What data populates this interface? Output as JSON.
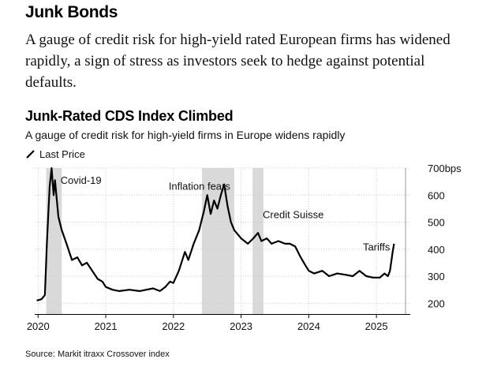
{
  "headline": "Junk Bonds",
  "lede": "A gauge of credit risk for high-yield rated European firms has widened rapidly, a sign of stress as investors seek to hedge against potential defaults.",
  "chart_data": {
    "type": "line",
    "title": "Junk-Rated CDS Index Climbed",
    "subtitle": "A gauge of credit risk for high-yield firms in Europe widens rapidly",
    "legend": [
      "Last Price"
    ],
    "legend_position": "top-left",
    "source": "Source: Markit itraxx Crossover index",
    "y_ticks": [
      {
        "value": 200,
        "label": "200"
      },
      {
        "value": 300,
        "label": "300"
      },
      {
        "value": 400,
        "label": "400"
      },
      {
        "value": 500,
        "label": "500"
      },
      {
        "value": 600,
        "label": "600"
      },
      {
        "value": 700,
        "label": "700bps"
      }
    ],
    "ylim": [
      160,
      700
    ],
    "xlim": [
      2019.95,
      2025.5
    ],
    "x_ticks": [
      {
        "value": 2020,
        "label": "2020"
      },
      {
        "value": 2021,
        "label": "2021"
      },
      {
        "value": 2022,
        "label": "2022"
      },
      {
        "value": 2023,
        "label": "2023"
      },
      {
        "value": 2024,
        "label": "2024"
      },
      {
        "value": 2025,
        "label": "2025"
      }
    ],
    "grid": true,
    "shaded_periods": [
      {
        "start": 2020.12,
        "end": 2020.35
      },
      {
        "start": 2022.42,
        "end": 2022.9
      },
      {
        "start": 2023.17,
        "end": 2023.33
      }
    ],
    "annotations": [
      {
        "text": "Covid-19",
        "x": 2020.33,
        "y": 642
      },
      {
        "text": "Inflation fears",
        "x": 2021.93,
        "y": 620
      },
      {
        "text": "Credit Suisse",
        "x": 2023.32,
        "y": 515
      },
      {
        "text": "Tariffs",
        "x": 2024.8,
        "y": 395
      }
    ],
    "series": [
      {
        "name": "Last Price",
        "color": "#000000",
        "points": [
          [
            2019.98,
            210
          ],
          [
            2020.05,
            215
          ],
          [
            2020.1,
            230
          ],
          [
            2020.13,
            420
          ],
          [
            2020.17,
            630
          ],
          [
            2020.2,
            700
          ],
          [
            2020.23,
            600
          ],
          [
            2020.25,
            655
          ],
          [
            2020.3,
            520
          ],
          [
            2020.35,
            470
          ],
          [
            2020.42,
            420
          ],
          [
            2020.5,
            360
          ],
          [
            2020.58,
            370
          ],
          [
            2020.65,
            340
          ],
          [
            2020.72,
            350
          ],
          [
            2020.8,
            320
          ],
          [
            2020.88,
            290
          ],
          [
            2020.95,
            280
          ],
          [
            2021.0,
            260
          ],
          [
            2021.1,
            250
          ],
          [
            2021.2,
            245
          ],
          [
            2021.35,
            250
          ],
          [
            2021.5,
            245
          ],
          [
            2021.6,
            250
          ],
          [
            2021.7,
            255
          ],
          [
            2021.8,
            245
          ],
          [
            2021.88,
            260
          ],
          [
            2021.95,
            280
          ],
          [
            2022.0,
            275
          ],
          [
            2022.08,
            320
          ],
          [
            2022.17,
            390
          ],
          [
            2022.22,
            360
          ],
          [
            2022.3,
            420
          ],
          [
            2022.38,
            470
          ],
          [
            2022.45,
            540
          ],
          [
            2022.5,
            600
          ],
          [
            2022.55,
            530
          ],
          [
            2022.6,
            580
          ],
          [
            2022.65,
            550
          ],
          [
            2022.7,
            600
          ],
          [
            2022.75,
            640
          ],
          [
            2022.8,
            560
          ],
          [
            2022.85,
            500
          ],
          [
            2022.9,
            470
          ],
          [
            2023.0,
            440
          ],
          [
            2023.1,
            420
          ],
          [
            2023.18,
            440
          ],
          [
            2023.25,
            460
          ],
          [
            2023.3,
            430
          ],
          [
            2023.38,
            440
          ],
          [
            2023.45,
            420
          ],
          [
            2023.55,
            430
          ],
          [
            2023.65,
            420
          ],
          [
            2023.72,
            420
          ],
          [
            2023.8,
            410
          ],
          [
            2023.88,
            370
          ],
          [
            2023.95,
            340
          ],
          [
            2024.0,
            320
          ],
          [
            2024.08,
            310
          ],
          [
            2024.2,
            320
          ],
          [
            2024.3,
            300
          ],
          [
            2024.42,
            310
          ],
          [
            2024.55,
            305
          ],
          [
            2024.65,
            300
          ],
          [
            2024.75,
            320
          ],
          [
            2024.85,
            300
          ],
          [
            2024.95,
            295
          ],
          [
            2025.05,
            295
          ],
          [
            2025.12,
            310
          ],
          [
            2025.17,
            300
          ],
          [
            2025.2,
            320
          ],
          [
            2025.24,
            390
          ],
          [
            2025.26,
            420
          ]
        ]
      }
    ]
  }
}
